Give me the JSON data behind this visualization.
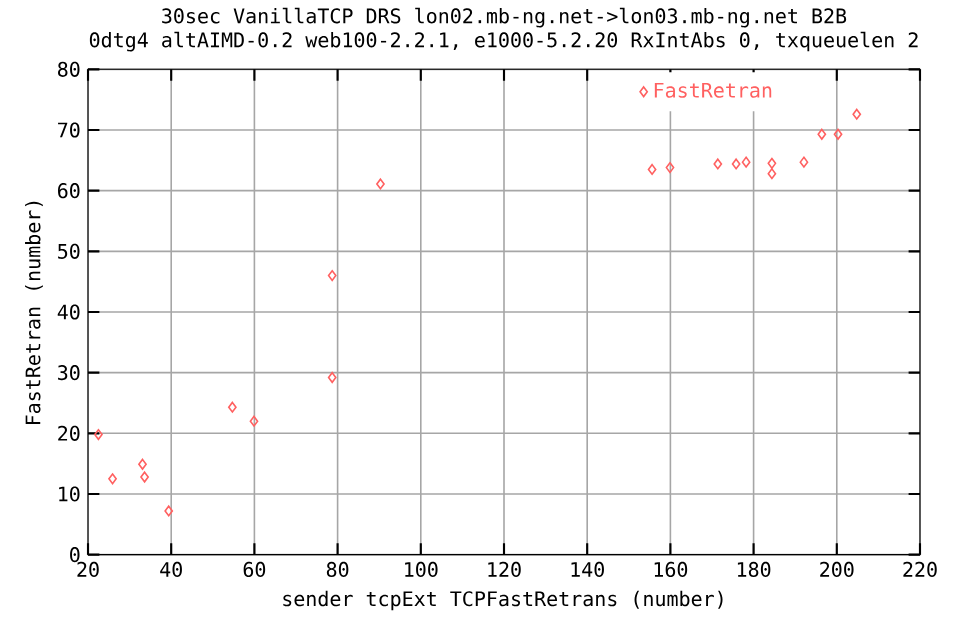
{
  "chart_data": {
    "type": "scatter",
    "title": "30sec VanillaTCP DRS lon02.mb-ng.net->lon03.mb-ng.net B2B",
    "subtitle": "0dtg4 altAIMD-0.2 web100-2.2.1, e1000-5.2.20 RxIntAbs 0, txqueuelen 2",
    "xlabel": "sender tcpExt TCPFastRetrans (number)",
    "ylabel": "FastRetran (number)",
    "xlim": [
      20,
      220
    ],
    "xticks": [
      20,
      40,
      60,
      80,
      100,
      120,
      140,
      160,
      180,
      200,
      220
    ],
    "ylim": [
      0,
      80
    ],
    "yticks": [
      0,
      10,
      20,
      30,
      40,
      50,
      60,
      70,
      80
    ],
    "grid": true,
    "legend": "top right",
    "marker": "diamond",
    "series": [
      {
        "name": "FastRetran",
        "color": "#ff6060",
        "x": [
          22.5,
          25.9,
          33.1,
          33.6,
          39.4,
          54.7,
          59.9,
          78.7,
          78.7,
          90.3,
          155.6,
          159.9,
          171.4,
          175.8,
          178.2,
          184.4,
          184.4,
          192.1,
          196.4,
          200.3,
          204.8
        ],
        "values": [
          19.8,
          12.5,
          14.9,
          12.8,
          7.2,
          24.3,
          22.0,
          29.2,
          46.0,
          61.1,
          63.5,
          63.8,
          64.4,
          64.4,
          64.7,
          64.5,
          62.8,
          64.7,
          69.3,
          69.3,
          72.6
        ]
      }
    ]
  }
}
